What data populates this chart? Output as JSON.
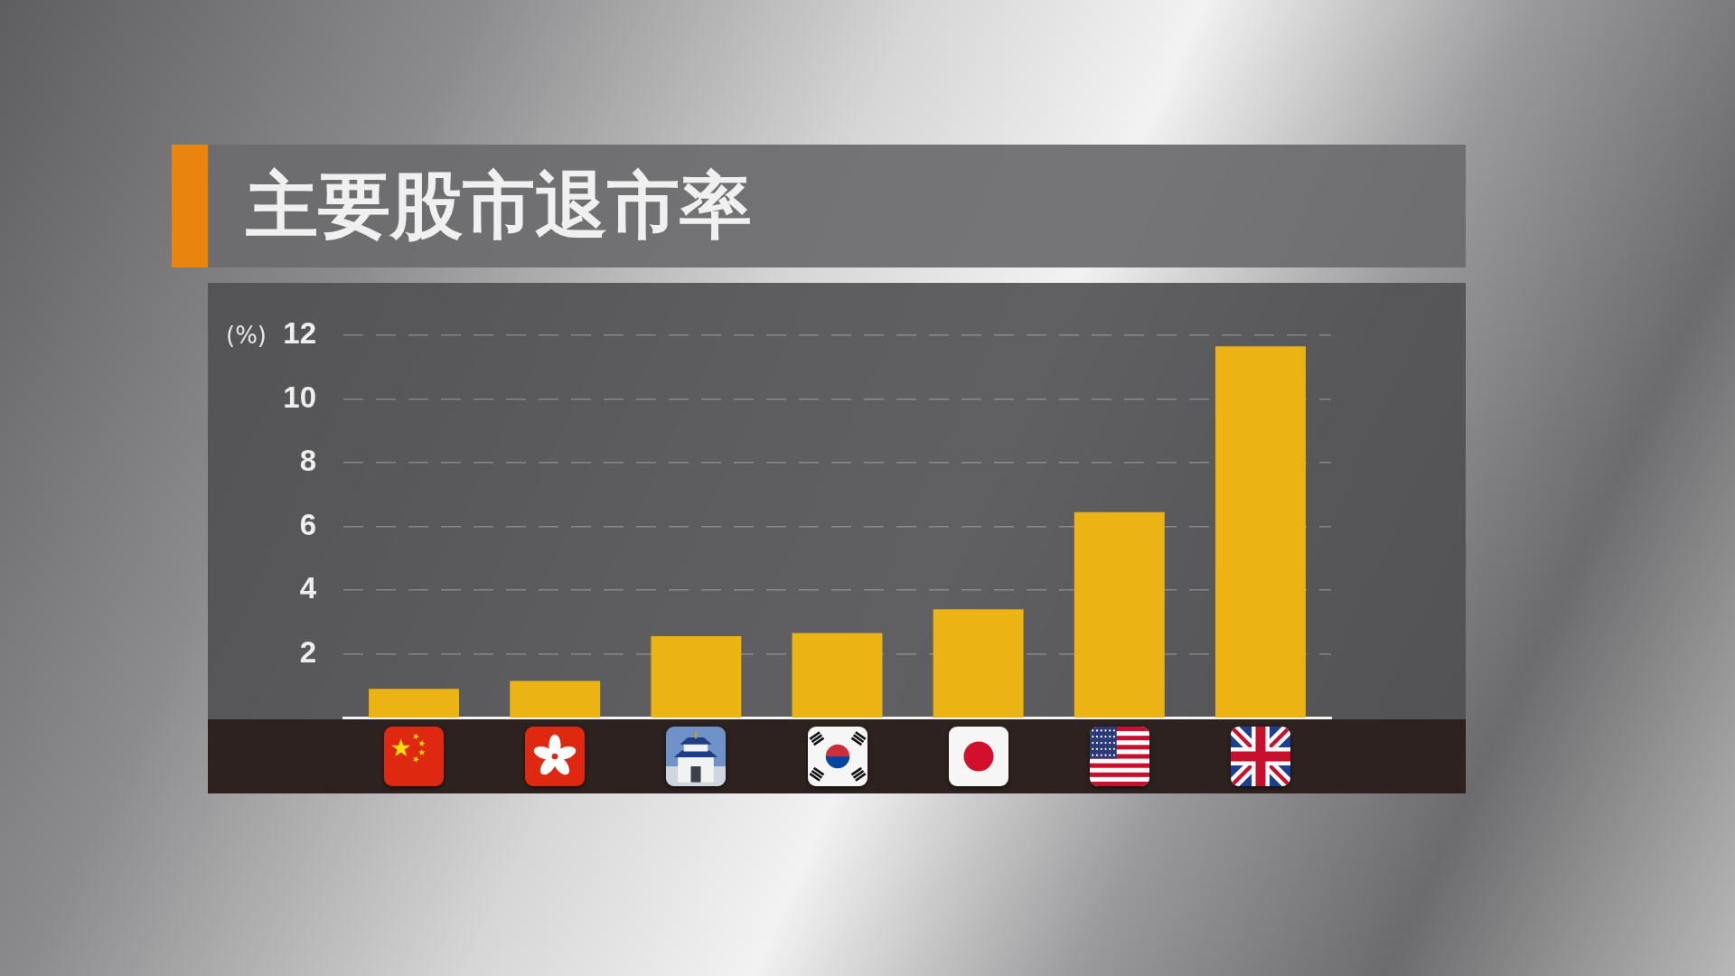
{
  "chart_data": {
    "type": "bar",
    "title": "主要股市退市率",
    "ylabel": "(%)",
    "categories": [
      null,
      null,
      null,
      null,
      null,
      null,
      null
    ],
    "values": [
      0.9,
      1.15,
      2.55,
      2.65,
      3.4,
      6.45,
      11.65
    ],
    "color": "#ecb314",
    "ylim": [
      0,
      12
    ],
    "yticks": [
      2,
      4,
      6,
      8,
      10,
      12
    ],
    "grid": "y",
    "tick_labels": "y"
  }
}
